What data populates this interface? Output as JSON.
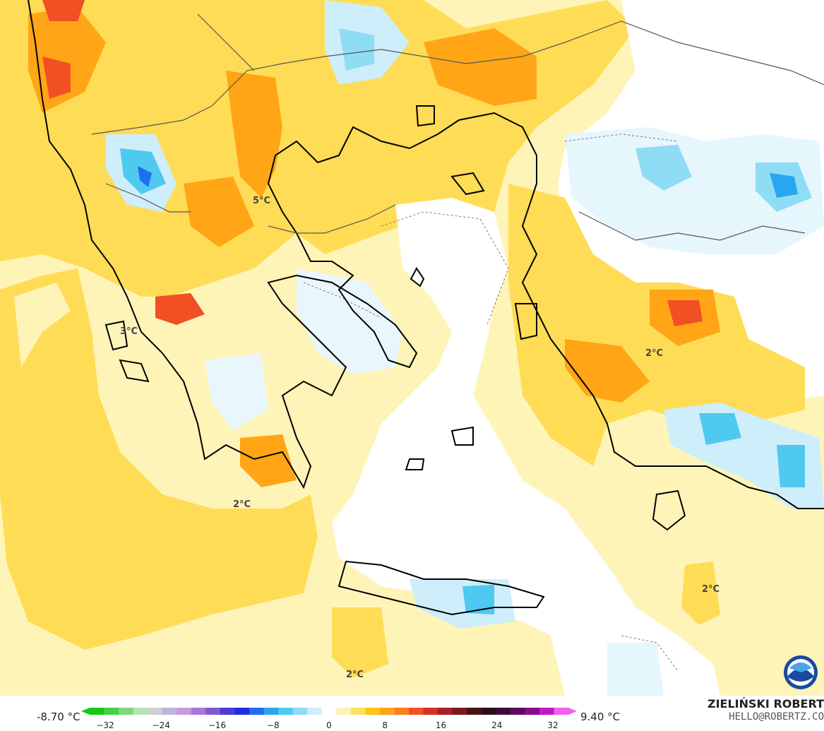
{
  "map": {
    "temperature_labels": [
      "5°C",
      "3°C",
      "2°C",
      "2°C",
      "2°C",
      "2°C"
    ]
  },
  "legend": {
    "min": "-8.70 °C",
    "max": "9.40 °C",
    "ticks": [
      "−32",
      "−24",
      "−16",
      "−8",
      "0",
      "8",
      "16",
      "24",
      "32"
    ],
    "colors": [
      "#17c817",
      "#45d145",
      "#7ed87e",
      "#b6e3b6",
      "#cfcfcf",
      "#bdb6d8",
      "#c49be0",
      "#a57ad6",
      "#7d5bd0",
      "#4a3cd8",
      "#1f2fe0",
      "#1c6ff0",
      "#29a6f0",
      "#4fc9f0",
      "#8fdcf5",
      "#cdeefa",
      "#ffffff",
      "#fff2b3",
      "#ffdf5f",
      "#ffc414",
      "#ffa516",
      "#ff7f1e",
      "#f15025",
      "#d53128",
      "#a91f26",
      "#7a1a20",
      "#4d1218",
      "#2a0f19",
      "#3d0b3d",
      "#5e0a60",
      "#8a0a8a",
      "#c21ac2",
      "#f25ef2"
    ]
  },
  "credit": {
    "name": "ZIELIŃSKI ROBERT",
    "email": "HELLO@ROBERTZ.CO"
  },
  "logo": "NOAA"
}
